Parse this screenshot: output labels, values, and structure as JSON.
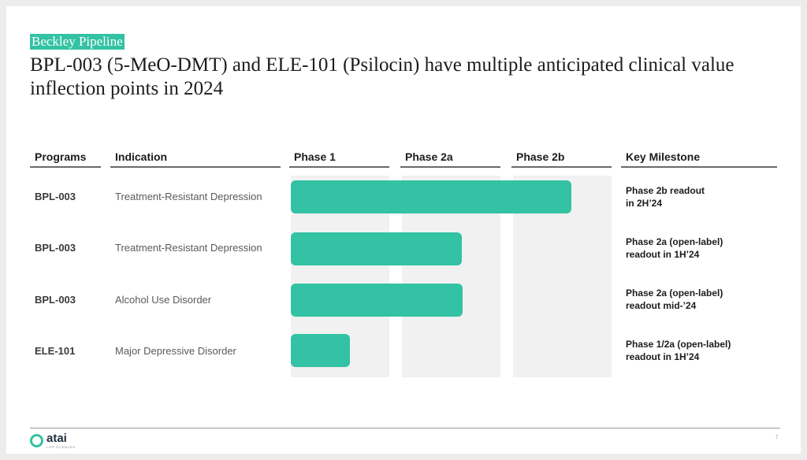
{
  "tag": "Beckley Pipeline",
  "title": "BPL-003 (5-MeO-DMT) and ELE-101 (Psilocin) have multiple anticipated clinical value inflection points in 2024",
  "columns": {
    "programs": "Programs",
    "indication": "Indication",
    "phase1": "Phase 1",
    "phase2a": "Phase 2a",
    "phase2b": "Phase 2b",
    "milestone": "Key Milestone"
  },
  "rows": [
    {
      "program": "BPL-003",
      "indication": "Treatment-Resistant Depression",
      "milestone": "Phase 2b readout\nin 2H’24",
      "progress": "Phase 2b"
    },
    {
      "program": "BPL-003",
      "indication": "Treatment-Resistant Depression",
      "milestone": "Phase 2a (open-label)\nreadout in 1H’24",
      "progress": "Phase 2a"
    },
    {
      "program": "BPL-003",
      "indication": "Alcohol Use Disorder",
      "milestone": "Phase 2a (open-label)\nreadout mid-’24",
      "progress": "Phase 2a"
    },
    {
      "program": "ELE-101",
      "indication": "Major Depressive Disorder",
      "milestone": "Phase 1/2a (open-label)\nreadout in 1H’24",
      "progress": "Phase 1"
    }
  ],
  "footer": {
    "logo": "atai",
    "logo_sub": "LIFE SCIENCES",
    "page": "7"
  },
  "colors": {
    "accent": "#33c2a3",
    "phase_bg": "#f1f1f1",
    "text": "#1c1c1c"
  }
}
